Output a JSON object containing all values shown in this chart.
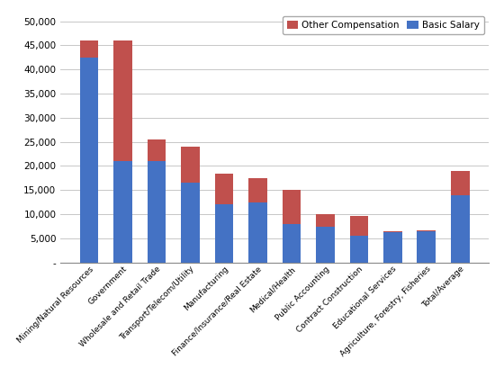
{
  "categories": [
    "Mining/Natural Resources",
    "Government",
    "Wholesale and Retail Trade",
    "Transport/Telecom/Utility",
    "Manufacturing",
    "Finance/Insurance/Real Estate",
    "Medical/Health",
    "Public Accounting",
    "Contract Construction",
    "Educational Services",
    "Agriculture, Forestry, Fisheries",
    "Total/Average"
  ],
  "basic_salary": [
    42500,
    21000,
    21000,
    16500,
    12000,
    12500,
    8000,
    7500,
    5500,
    6300,
    6500,
    14000
  ],
  "other_compensation": [
    3500,
    25000,
    4500,
    7500,
    6500,
    5000,
    7000,
    2500,
    4200,
    200,
    200,
    5000
  ],
  "bar_color_basic": "#4472C4",
  "bar_color_other": "#C0504D",
  "legend_labels": [
    "Other Compensation",
    "Basic Salary"
  ],
  "ylim": [
    0,
    52000
  ],
  "yticks": [
    0,
    5000,
    10000,
    15000,
    20000,
    25000,
    30000,
    35000,
    40000,
    45000,
    50000
  ],
  "background_color": "#FFFFFF",
  "grid_color": "#BEBEBE",
  "bar_width": 0.55,
  "figsize": [
    5.6,
    4.29
  ],
  "dpi": 100
}
